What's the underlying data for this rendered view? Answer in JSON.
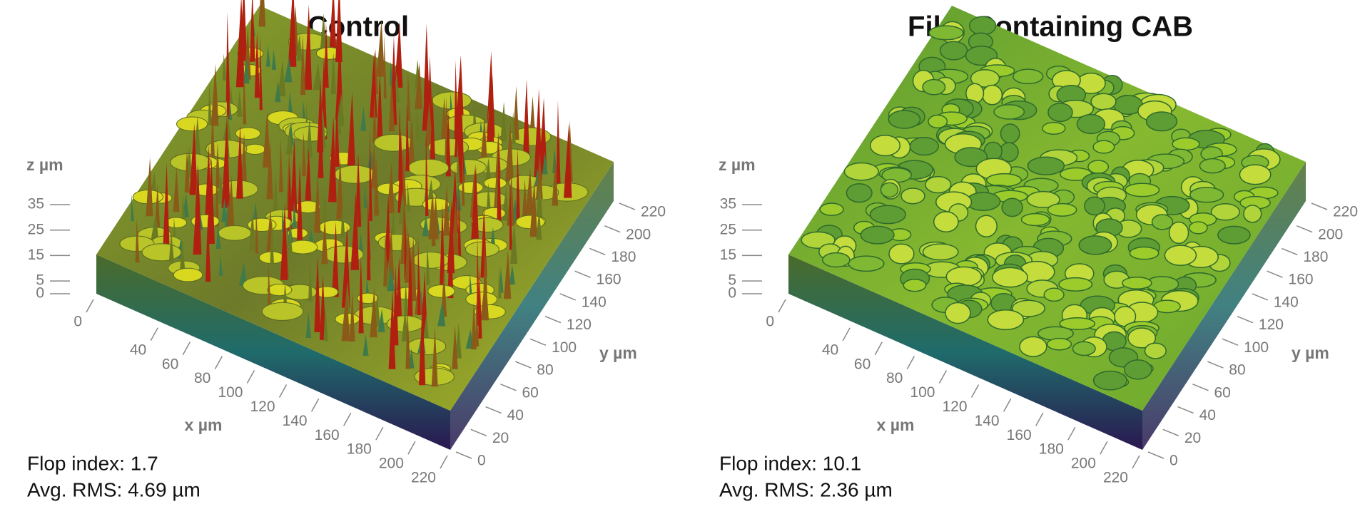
{
  "chart_data": [
    {
      "type": "surface3d",
      "title": "Control",
      "xlabel": "x µm",
      "ylabel": "y µm",
      "zlabel": "z µm",
      "xlim": [
        0,
        220
      ],
      "xticks": [
        0,
        40,
        60,
        80,
        100,
        120,
        140,
        160,
        180,
        200,
        220
      ],
      "ylim": [
        0,
        220
      ],
      "yticks": [
        0,
        20,
        40,
        60,
        80,
        100,
        120,
        140,
        160,
        180,
        200,
        220
      ],
      "zlim": [
        0,
        35
      ],
      "zticks": [
        0,
        5,
        15,
        25,
        35
      ],
      "annotations": [
        "Flop index: 1.7",
        "Avg. RMS: 4.69 µm"
      ],
      "texture": "spiky"
    },
    {
      "type": "surface3d",
      "title": "Film Containing CAB",
      "xlabel": "x µm",
      "ylabel": "y µm",
      "zlabel": "z µm",
      "xlim": [
        0,
        220
      ],
      "xticks": [
        0,
        40,
        60,
        80,
        100,
        120,
        140,
        160,
        180,
        200,
        220
      ],
      "ylim": [
        0,
        220
      ],
      "yticks": [
        0,
        20,
        40,
        60,
        80,
        100,
        120,
        140,
        160,
        180,
        200,
        220
      ],
      "zlim": [
        0,
        35
      ],
      "zticks": [
        0,
        5,
        15,
        25,
        35
      ],
      "annotations": [
        "Flop index: 10.1",
        "Avg. RMS: 2.36 µm"
      ],
      "texture": "smooth"
    }
  ]
}
